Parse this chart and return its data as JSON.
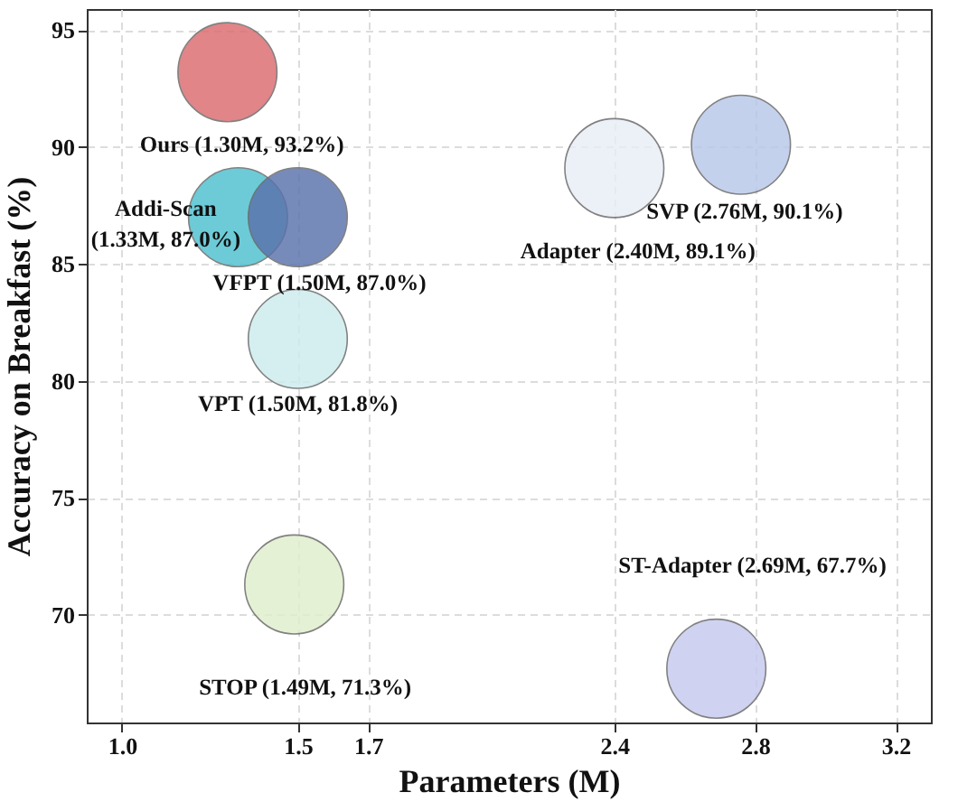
{
  "chart_data": {
    "type": "bubble",
    "xlabel": "Parameters (M)",
    "ylabel": "Accuracy on Breakfast (%)",
    "x": [
      1.3,
      1.33,
      1.5,
      1.5,
      2.4,
      2.76,
      1.49,
      2.69
    ],
    "values": [
      93.2,
      87.0,
      87.0,
      81.8,
      89.1,
      90.1,
      71.3,
      67.7
    ],
    "sizes": [
      1,
      1,
      1,
      1,
      1,
      1,
      1,
      1
    ],
    "colors": [
      "#db6b6e",
      "#4dc0cf",
      "#5a72ac",
      "#cdecee",
      "#e9edf6",
      "#b8c8ea",
      "#e0eecb",
      "#c6c9ef"
    ],
    "value_labels": [
      "Ours (1.30M, 93.2%)",
      "Addi-Scan\n(1.33M, 87.0%)",
      "VFPT (1.50M, 87.0%)",
      "VPT (1.50M, 81.8%)",
      "Adapter (2.40M, 89.1%)",
      "SVP (2.76M, 90.1%)",
      "STOP (1.49M, 71.3%)",
      "ST-Adapter (2.69M, 67.7%)"
    ],
    "xlim": [
      0.9,
      3.3
    ],
    "xticks": [
      {
        "value": 1,
        "label": "1.0"
      },
      1.5,
      1.7,
      2.4,
      2.8,
      3.2
    ],
    "ylim": [
      65.4,
      95.9
    ],
    "yticks": [
      70,
      75,
      80,
      85,
      90,
      95
    ],
    "grid": true
  }
}
